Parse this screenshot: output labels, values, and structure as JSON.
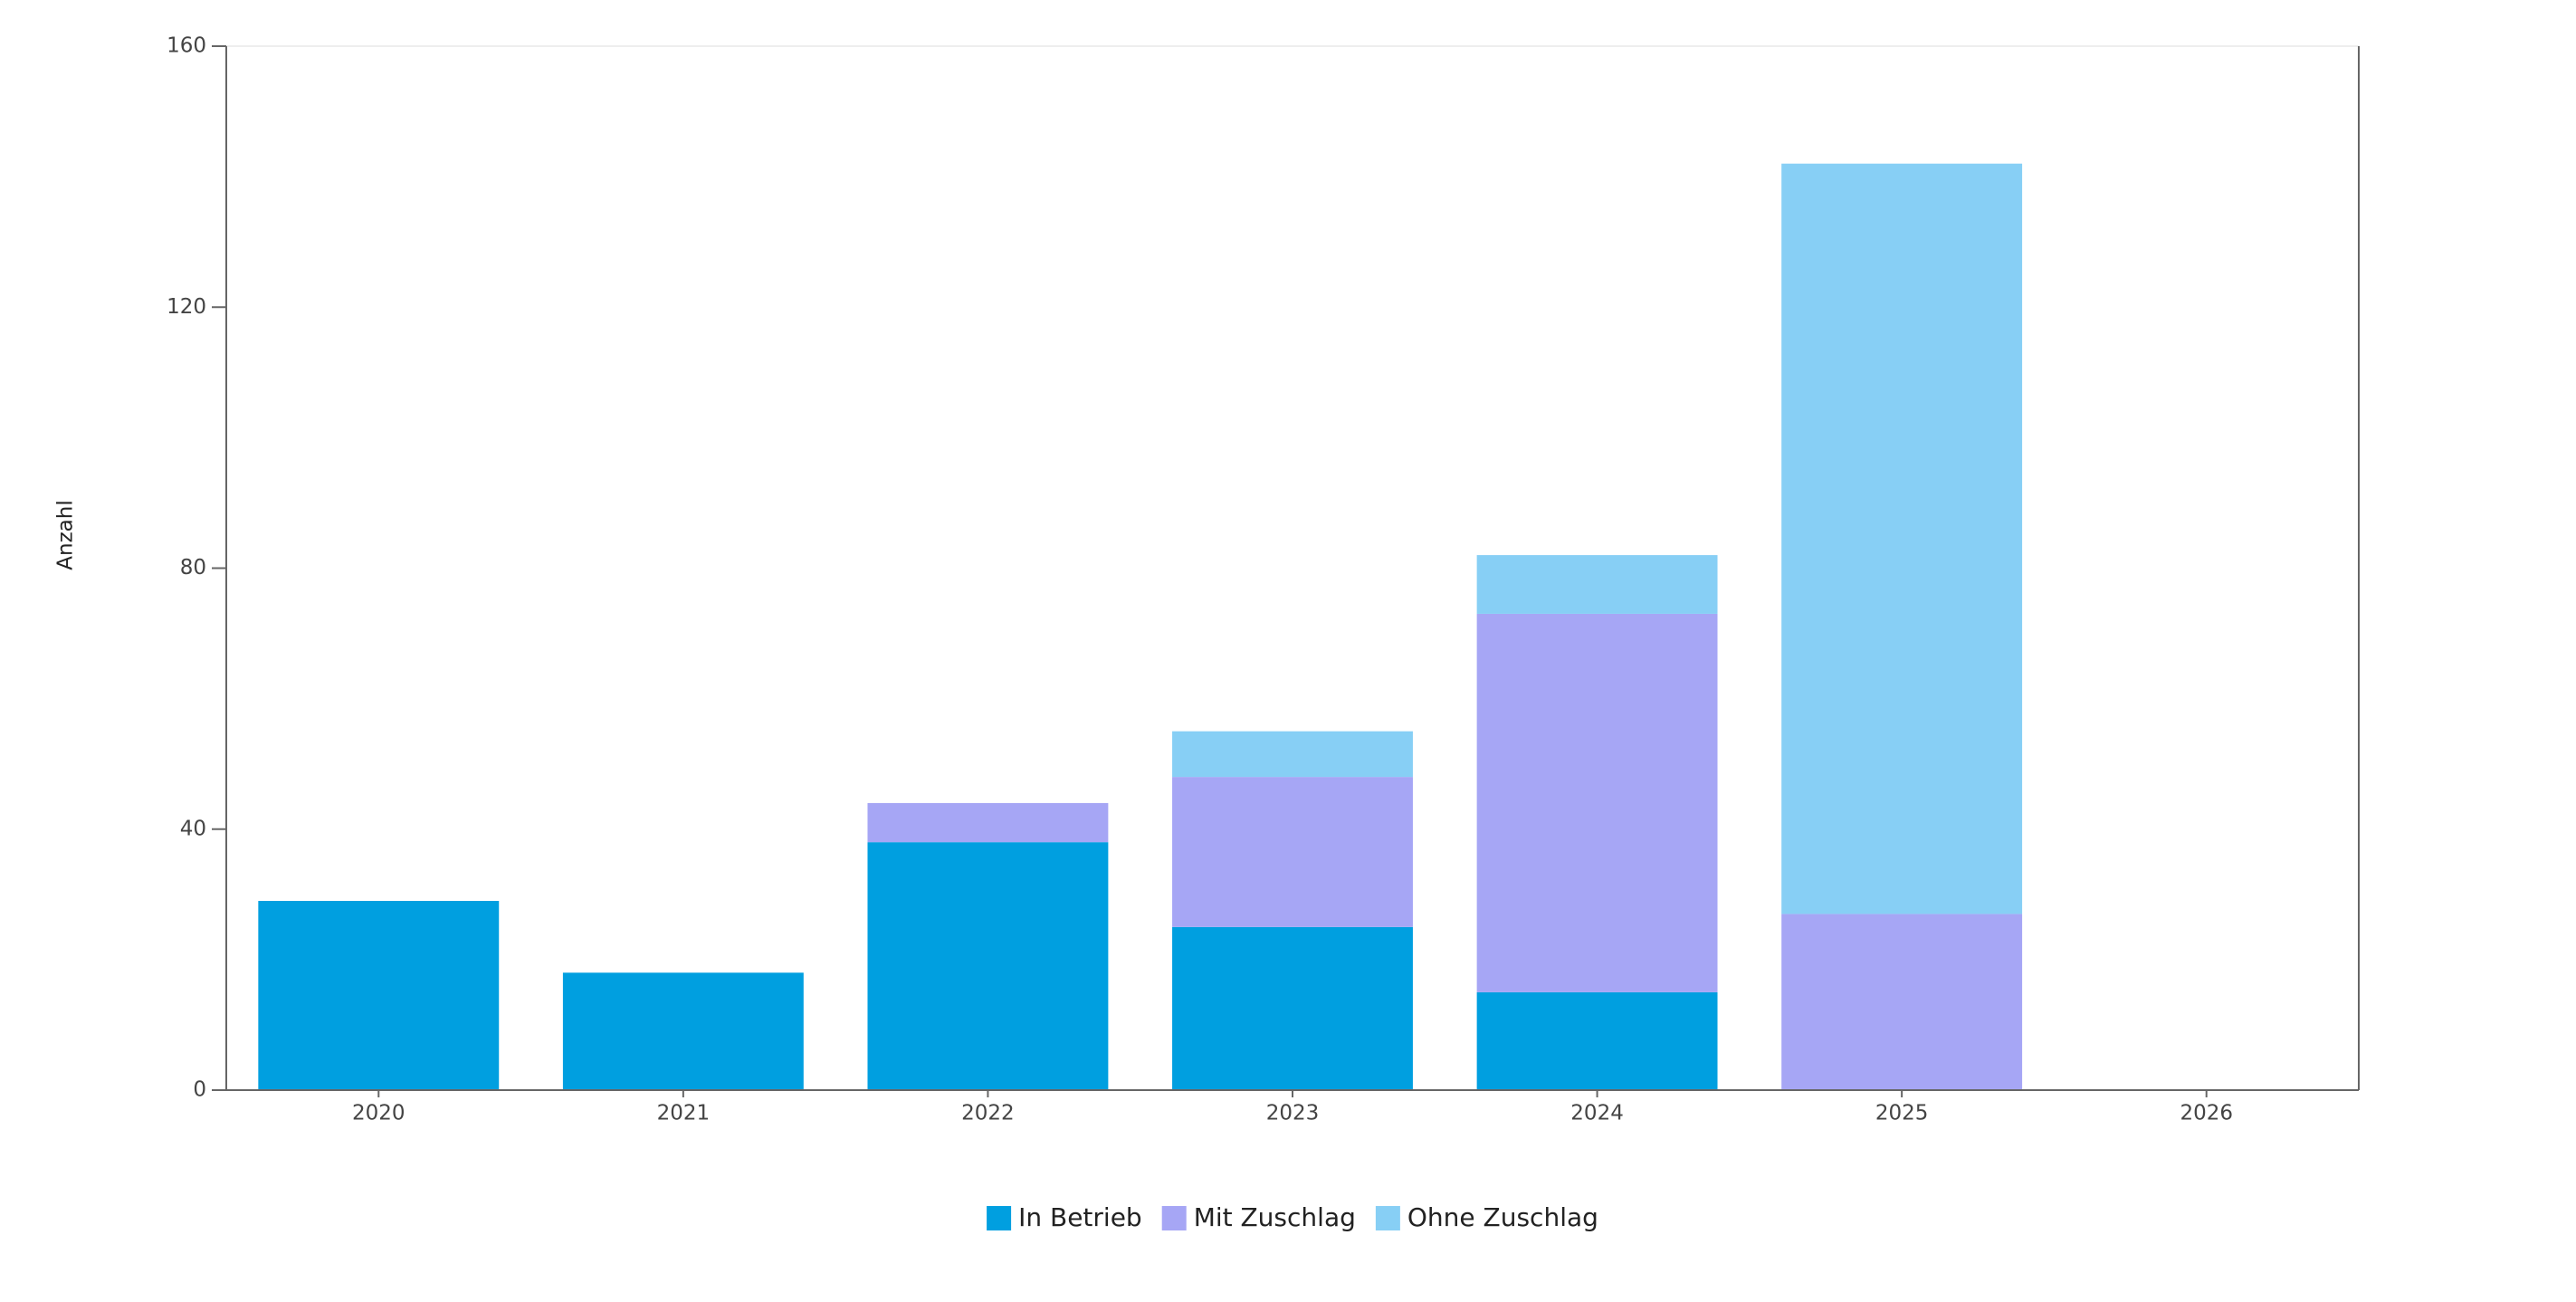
{
  "chart_data": {
    "type": "stacked-bar",
    "y_label": "Anzahl",
    "categories": [
      "2020",
      "2021",
      "2022",
      "2023",
      "2024",
      "2025",
      "2026"
    ],
    "series": [
      {
        "name": "In Betrieb",
        "color": "#009fe0",
        "values": [
          29,
          18,
          38,
          25,
          15,
          0,
          0
        ]
      },
      {
        "name": "Mit Zuschlag",
        "color": "#a6a6f5",
        "values": [
          0,
          0,
          6,
          23,
          58,
          27,
          0
        ]
      },
      {
        "name": "Ohne Zuschlag",
        "color": "#87cff5",
        "values": [
          0,
          0,
          0,
          7,
          9,
          115,
          0
        ]
      }
    ],
    "ylim": [
      0,
      160
    ],
    "yticks": [
      0,
      40,
      80,
      120,
      160
    ],
    "legend": "bottom"
  }
}
